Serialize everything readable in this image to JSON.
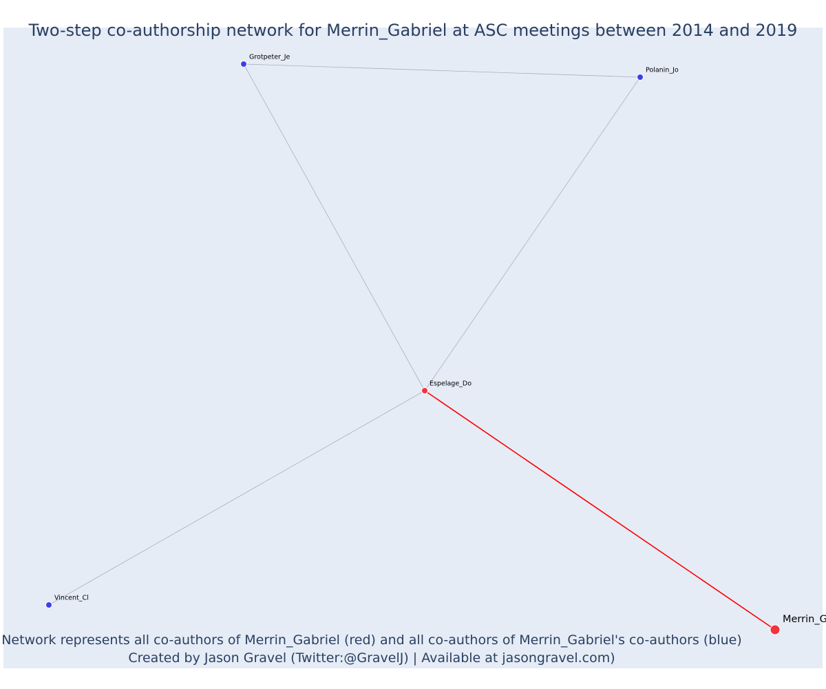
{
  "title": "Two-step co-authorship network for Merrin_Gabriel at ASC meetings between 2014 and 2019",
  "caption": {
    "line1": "Network represents all co-authors of Merrin_Gabriel (red) and all co-authors of Merrin_Gabriel's co-authors (blue)",
    "line2": "Created by Jason Gravel (Twitter:@GravelJ) | Available at jasongravel.com)"
  },
  "colors": {
    "background": "#e5ecf6",
    "red_node": "#f0343d",
    "blue_node": "#3c3fe6",
    "red_edge": "#ff0000",
    "grey_edge": "#a9afbf",
    "title_text": "#2a3f5f"
  },
  "nodes": [
    {
      "id": "Grotpeter_Je",
      "label": "Grotpeter_Je",
      "group": "blue"
    },
    {
      "id": "Polanin_Jo",
      "label": "Polanin_Jo",
      "group": "blue"
    },
    {
      "id": "Espelage_Do",
      "label": "Espelage_Do",
      "group": "red"
    },
    {
      "id": "Vincent_Cl",
      "label": "Vincent_Cl",
      "group": "blue"
    },
    {
      "id": "Merrin_Gabriel",
      "label": "Merrin_Gabriel",
      "group": "focal"
    }
  ],
  "edges": [
    {
      "source": "Grotpeter_Je",
      "target": "Polanin_Jo",
      "type": "grey"
    },
    {
      "source": "Grotpeter_Je",
      "target": "Espelage_Do",
      "type": "grey"
    },
    {
      "source": "Polanin_Jo",
      "target": "Espelage_Do",
      "type": "grey"
    },
    {
      "source": "Espelage_Do",
      "target": "Vincent_Cl",
      "type": "grey"
    },
    {
      "source": "Espelage_Do",
      "target": "Merrin_Gabriel",
      "type": "red"
    }
  ]
}
